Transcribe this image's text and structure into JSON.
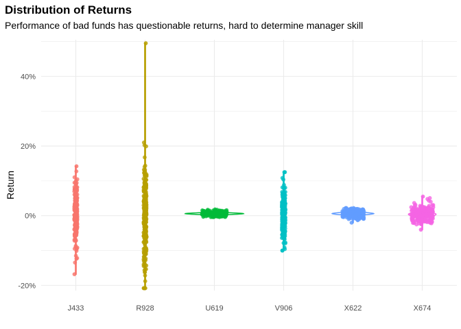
{
  "chart_data": {
    "type": "scatter",
    "subtype": "violin-with-jitter",
    "title": "Distribution of Returns",
    "subtitle": "Performance of bad funds has questionable returns, hard to determine manager skill",
    "xlabel": "",
    "ylabel": "Return",
    "ylim": [
      -0.215,
      0.505
    ],
    "y_ticks": [
      -0.2,
      0.0,
      0.2,
      0.4
    ],
    "y_tick_labels": [
      "-20%",
      "0%",
      "20%",
      "40%"
    ],
    "grid": true,
    "legend": "none",
    "categories": [
      "J433",
      "R928",
      "U619",
      "V906",
      "X622",
      "X674"
    ],
    "series": [
      {
        "category": "J433",
        "color": "#F8766D",
        "min": -0.168,
        "max": 0.142,
        "median": 0.0,
        "sd": 0.045,
        "n": 240,
        "spread": 0.022,
        "violin_half_width": 0.02
      },
      {
        "category": "R928",
        "color": "#B79F00",
        "min": -0.208,
        "max": 0.495,
        "median": 0.0,
        "sd": 0.085,
        "n": 260,
        "spread": 0.022,
        "violin_half_width": 0.015
      },
      {
        "category": "U619",
        "color": "#00BA38",
        "min": -0.004,
        "max": 0.018,
        "median": 0.006,
        "sd": 0.005,
        "n": 200,
        "spread": 0.18,
        "violin_half_width": 0.42
      },
      {
        "category": "V906",
        "color": "#00BFC4",
        "min": -0.1,
        "max": 0.125,
        "median": 0.0,
        "sd": 0.04,
        "n": 230,
        "spread": 0.025,
        "violin_half_width": 0.02
      },
      {
        "category": "X622",
        "color": "#619CFF",
        "min": -0.02,
        "max": 0.022,
        "median": 0.006,
        "sd": 0.007,
        "n": 220,
        "spread": 0.16,
        "violin_half_width": 0.3
      },
      {
        "category": "X674",
        "color": "#F564E3",
        "min": -0.04,
        "max": 0.055,
        "median": 0.004,
        "sd": 0.013,
        "n": 240,
        "spread": 0.16,
        "violin_half_width": 0.2
      }
    ]
  }
}
